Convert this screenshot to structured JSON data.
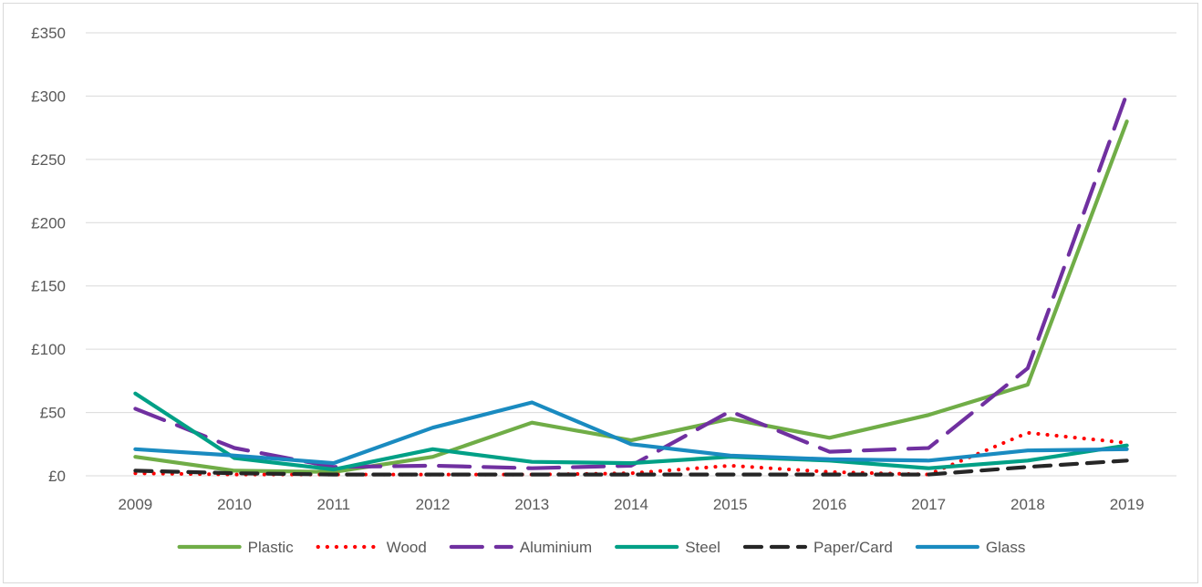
{
  "chart_data": {
    "type": "line",
    "title": "",
    "xlabel": "",
    "ylabel": "",
    "x": [
      "2009",
      "2010",
      "2011",
      "2012",
      "2013",
      "2014",
      "2015",
      "2016",
      "2017",
      "2018",
      "2019"
    ],
    "ylim": [
      0,
      350
    ],
    "y_ticks": [
      0,
      50,
      100,
      150,
      200,
      250,
      300,
      350
    ],
    "y_tick_labels": [
      "£0",
      "£50",
      "£100",
      "£150",
      "£200",
      "£250",
      "£300",
      "£350"
    ],
    "grid": "horizontal",
    "legend_position": "bottom",
    "series": [
      {
        "name": "Plastic",
        "color": "#70ad47",
        "dash": "solid",
        "values": [
          15,
          4,
          3,
          15,
          42,
          28,
          45,
          30,
          48,
          72,
          280
        ]
      },
      {
        "name": "Wood",
        "color": "#ff0000",
        "dash": "dotted",
        "values": [
          2,
          1,
          1,
          1,
          1,
          2,
          8,
          3,
          1,
          34,
          26
        ]
      },
      {
        "name": "Aluminium",
        "color": "#7030a0",
        "dash": "longdash",
        "values": [
          53,
          22,
          7,
          8,
          6,
          8,
          51,
          19,
          22,
          85,
          302
        ]
      },
      {
        "name": "Steel",
        "color": "#00a086",
        "dash": "solid",
        "values": [
          65,
          14,
          5,
          21,
          11,
          10,
          15,
          12,
          6,
          12,
          24
        ]
      },
      {
        "name": "Paper/Card",
        "color": "#262626",
        "dash": "dashed",
        "values": [
          4,
          2,
          1,
          1,
          1,
          1,
          1,
          1,
          1,
          7,
          12
        ]
      },
      {
        "name": "Glass",
        "color": "#1a8bc0",
        "dash": "solid",
        "values": [
          21,
          16,
          10,
          38,
          58,
          25,
          16,
          13,
          12,
          20,
          21
        ]
      }
    ]
  }
}
